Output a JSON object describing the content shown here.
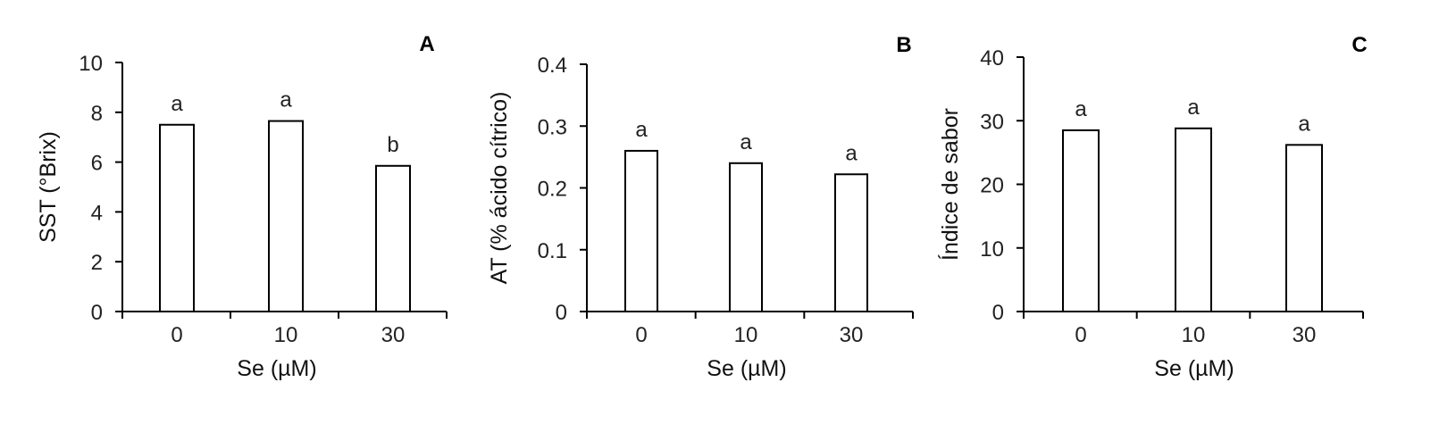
{
  "chart_data": [
    {
      "type": "bar",
      "panel": "A",
      "categories": [
        "0",
        "10",
        "30"
      ],
      "values": [
        7.5,
        7.65,
        5.85
      ],
      "letters": [
        "a",
        "a",
        "b"
      ],
      "xlabel": "Se (µM)",
      "ylabel": "SST (°Brix)",
      "ylim": [
        0,
        10
      ],
      "yticks": [
        "0",
        "2",
        "4",
        "6",
        "8",
        "10"
      ]
    },
    {
      "type": "bar",
      "panel": "B",
      "categories": [
        "0",
        "10",
        "30"
      ],
      "values": [
        0.26,
        0.24,
        0.222
      ],
      "letters": [
        "a",
        "a",
        "a"
      ],
      "xlabel": "Se (µM)",
      "ylabel": "AT (% ácido cítrico)",
      "ylim": [
        0,
        0.4
      ],
      "yticks": [
        "0",
        "0.1",
        "0.2",
        "0.3",
        "0.4"
      ]
    },
    {
      "type": "bar",
      "panel": "C",
      "categories": [
        "0",
        "10",
        "30"
      ],
      "values": [
        28.5,
        28.8,
        26.2
      ],
      "letters": [
        "a",
        "a",
        "a"
      ],
      "xlabel": "Se (µM)",
      "ylabel": "Índice de sabor",
      "ylim": [
        0,
        40
      ],
      "yticks": [
        "0",
        "10",
        "20",
        "30",
        "40"
      ]
    }
  ]
}
